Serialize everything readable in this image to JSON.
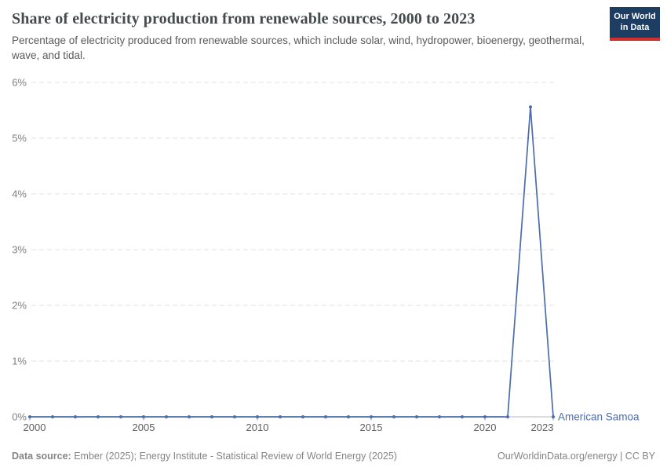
{
  "header": {
    "title": "Share of electricity production from renewable sources, 2000 to 2023",
    "subtitle": "Percentage of electricity produced from renewable sources, which include solar, wind, hydropower, bioenergy, geothermal, wave, and tidal.",
    "logo": {
      "line1": "Our World",
      "line2": "in Data"
    }
  },
  "chart_data": {
    "type": "line",
    "title": "Share of electricity production from renewable sources, 2000 to 2023",
    "x": [
      2000,
      2001,
      2002,
      2003,
      2004,
      2005,
      2006,
      2007,
      2008,
      2009,
      2010,
      2011,
      2012,
      2013,
      2014,
      2015,
      2016,
      2017,
      2018,
      2019,
      2020,
      2021,
      2022,
      2023
    ],
    "series": [
      {
        "name": "American Samoa",
        "values": [
          0,
          0,
          0,
          0,
          0,
          0,
          0,
          0,
          0,
          0,
          0,
          0,
          0,
          0,
          0,
          0,
          0,
          0,
          0,
          0,
          0,
          0,
          5.56,
          0
        ]
      }
    ],
    "xlabel": "",
    "ylabel": "",
    "xlim": [
      2000,
      2023
    ],
    "ylim": [
      0,
      6
    ],
    "xticks": [
      2000,
      2005,
      2010,
      2015,
      2020,
      2023
    ],
    "yticks": [
      0,
      1,
      2,
      3,
      4,
      5,
      6
    ],
    "ytick_suffix": "%",
    "grid": "horizontal-dashed",
    "legend_position": "end-of-line-label"
  },
  "footer": {
    "source_label": "Data source:",
    "source_text": "Ember (2025); Energy Institute - Statistical Review of World Energy (2025)",
    "credit": "OurWorldinData.org/energy | CC BY"
  },
  "colors": {
    "series": "#4c6cab",
    "entity_label": "#4c6cab",
    "grid": "#e2e2e2",
    "axis": "#b8b8b8",
    "tick": "#999999",
    "x_label": "#5e5e5e",
    "y_label": "#808080",
    "title": "#454a4d",
    "subtitle": "#5b5b5b",
    "footer": "#858585",
    "logo_bg": "#1d3d63",
    "logo_stripe": "#d0312d"
  }
}
